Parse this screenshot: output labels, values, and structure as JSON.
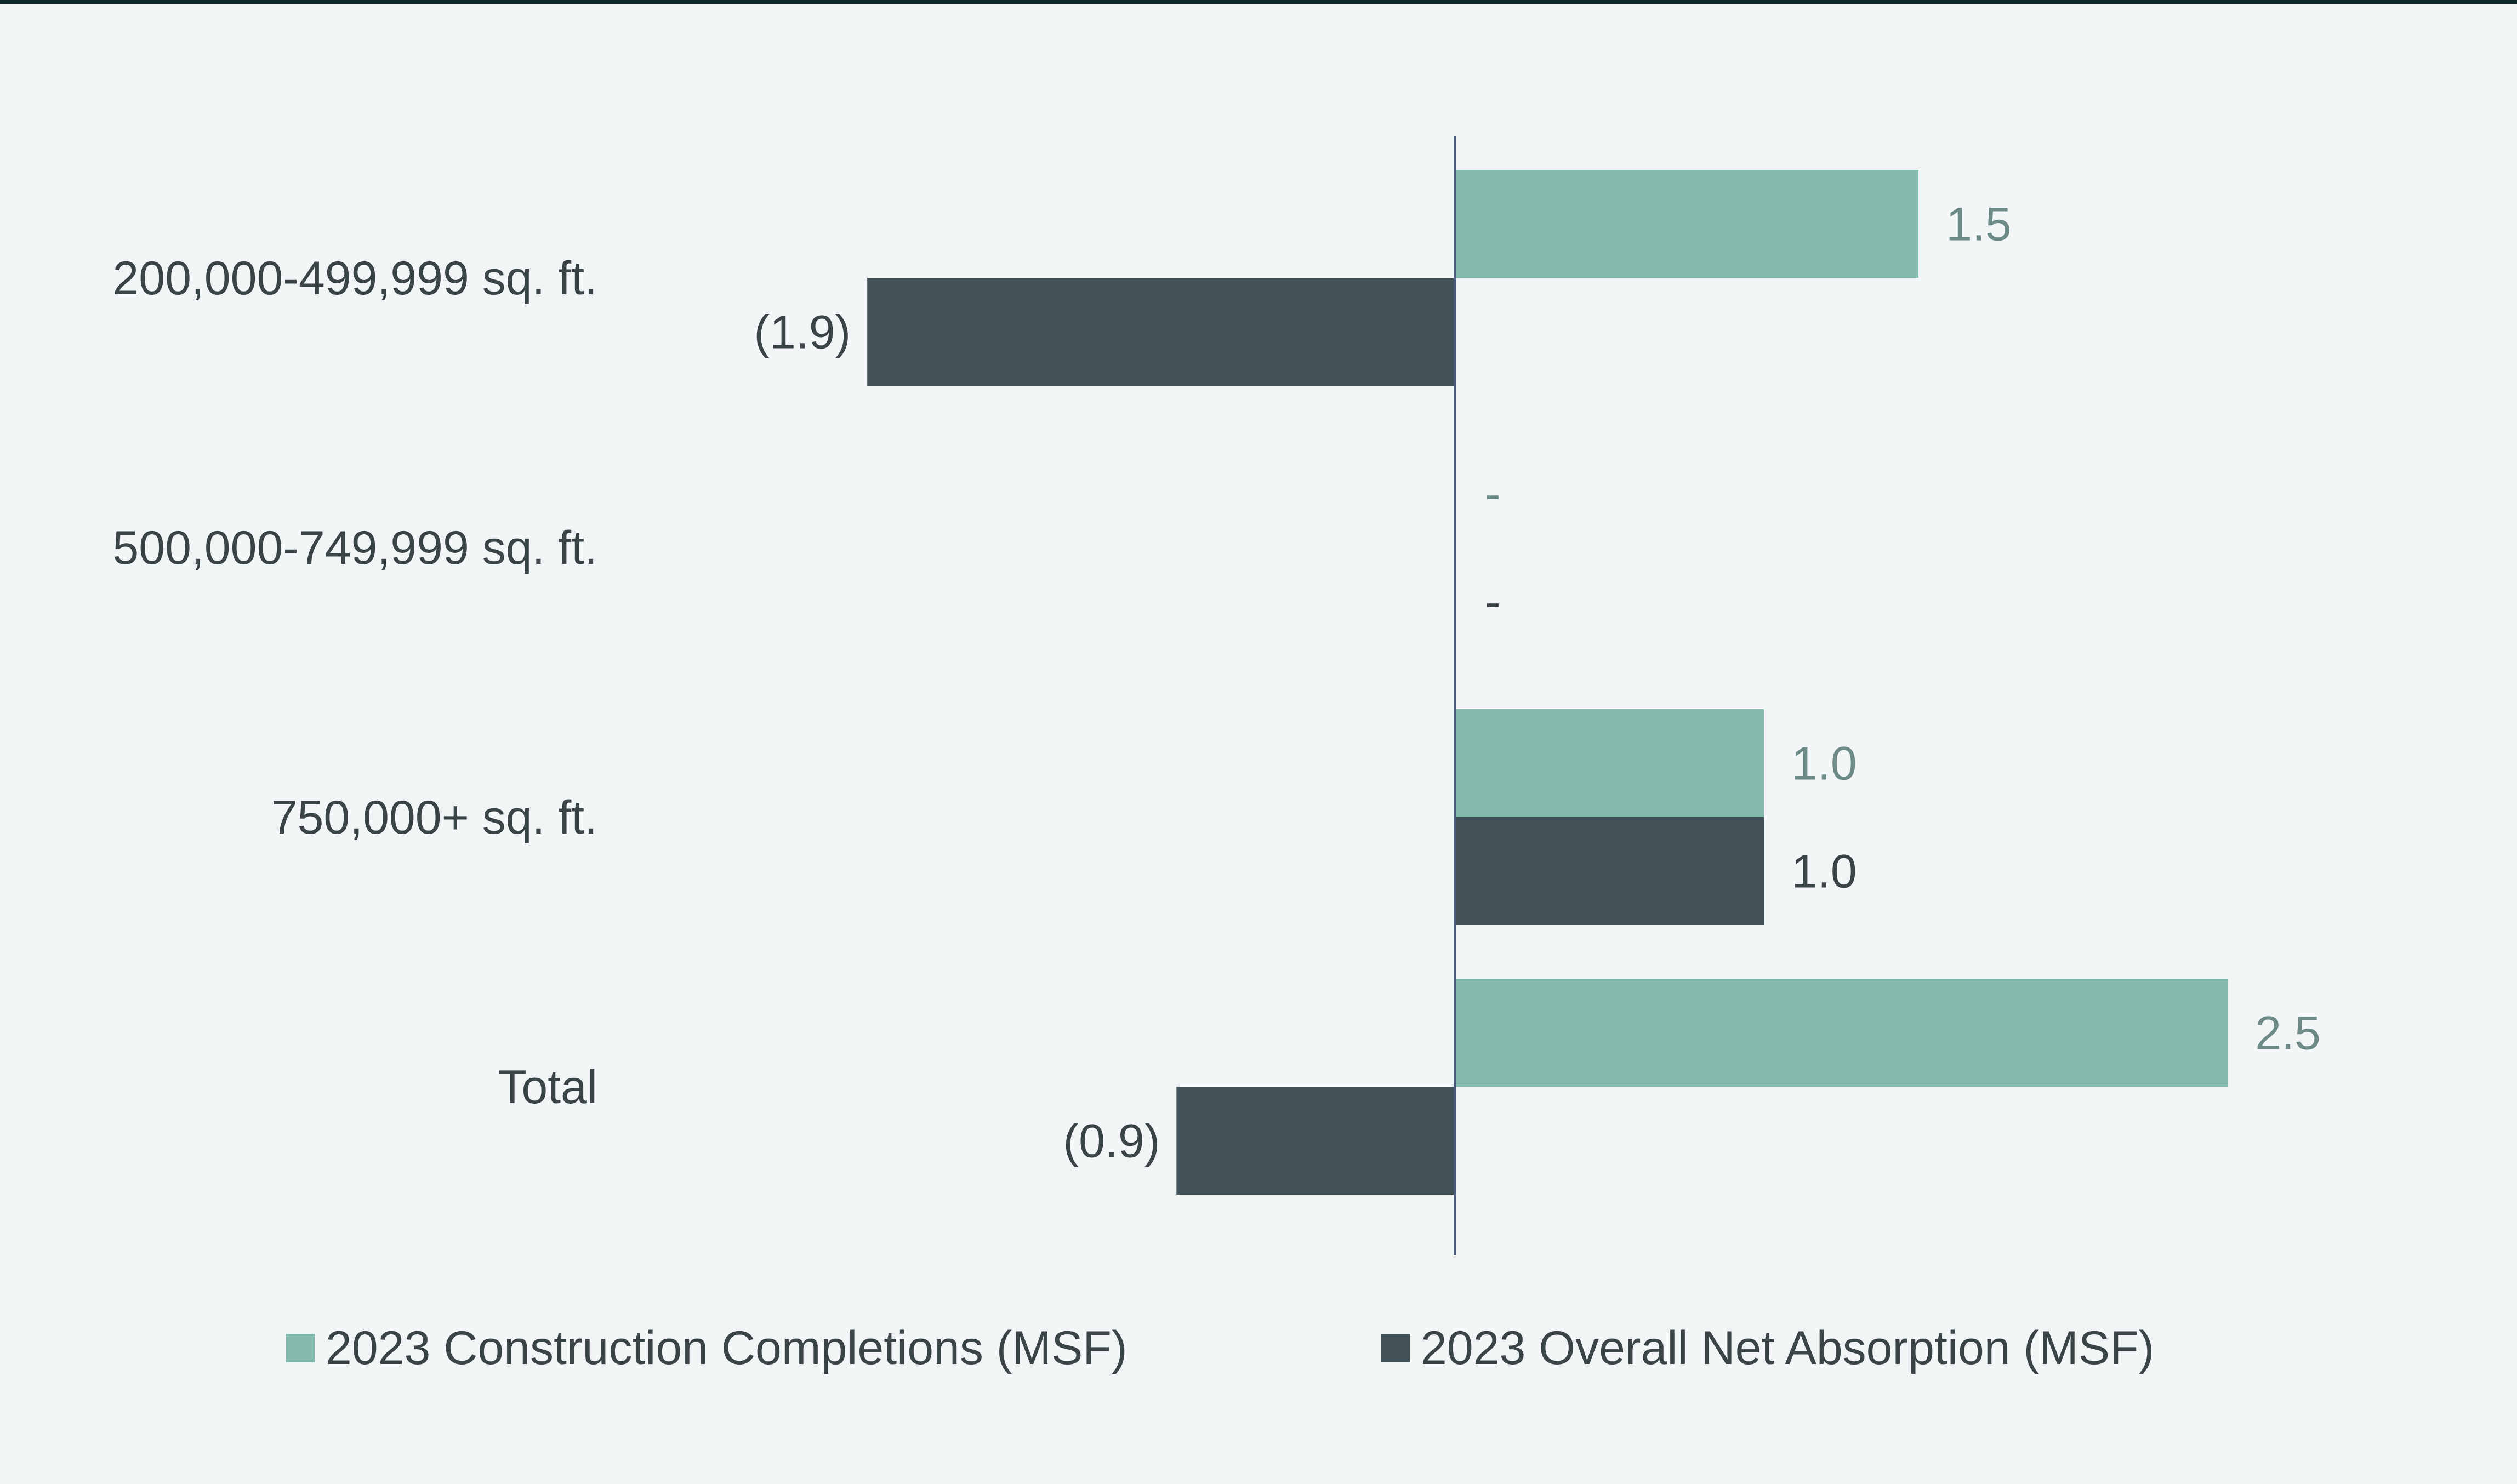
{
  "chart_data": {
    "type": "bar",
    "orientation": "horizontal",
    "title": "",
    "xlabel": "",
    "ylabel": "",
    "categories": [
      "200,000-499,999 sq. ft.",
      "500,000-749,999 sq. ft.",
      "750,000+ sq. ft.",
      "Total"
    ],
    "series": [
      {
        "name": "2023 Construction Completions (MSF)",
        "color": "#84bbad",
        "label_color": "#6e8a86",
        "values": [
          1.5,
          0,
          1.0,
          2.5
        ],
        "labels": [
          "1.5",
          "-",
          "1.0",
          "2.5"
        ]
      },
      {
        "name": "2023 Overall Net Absorption (MSF)",
        "color": "#435257",
        "label_color": "#3a4446",
        "values": [
          -1.9,
          0,
          1.0,
          -0.9
        ],
        "labels": [
          "(1.9)",
          "-",
          "1.0",
          "(0.9)"
        ]
      }
    ],
    "xlim": [
      -4.5,
      3.3
    ],
    "grid": false,
    "legend_position": "bottom"
  }
}
